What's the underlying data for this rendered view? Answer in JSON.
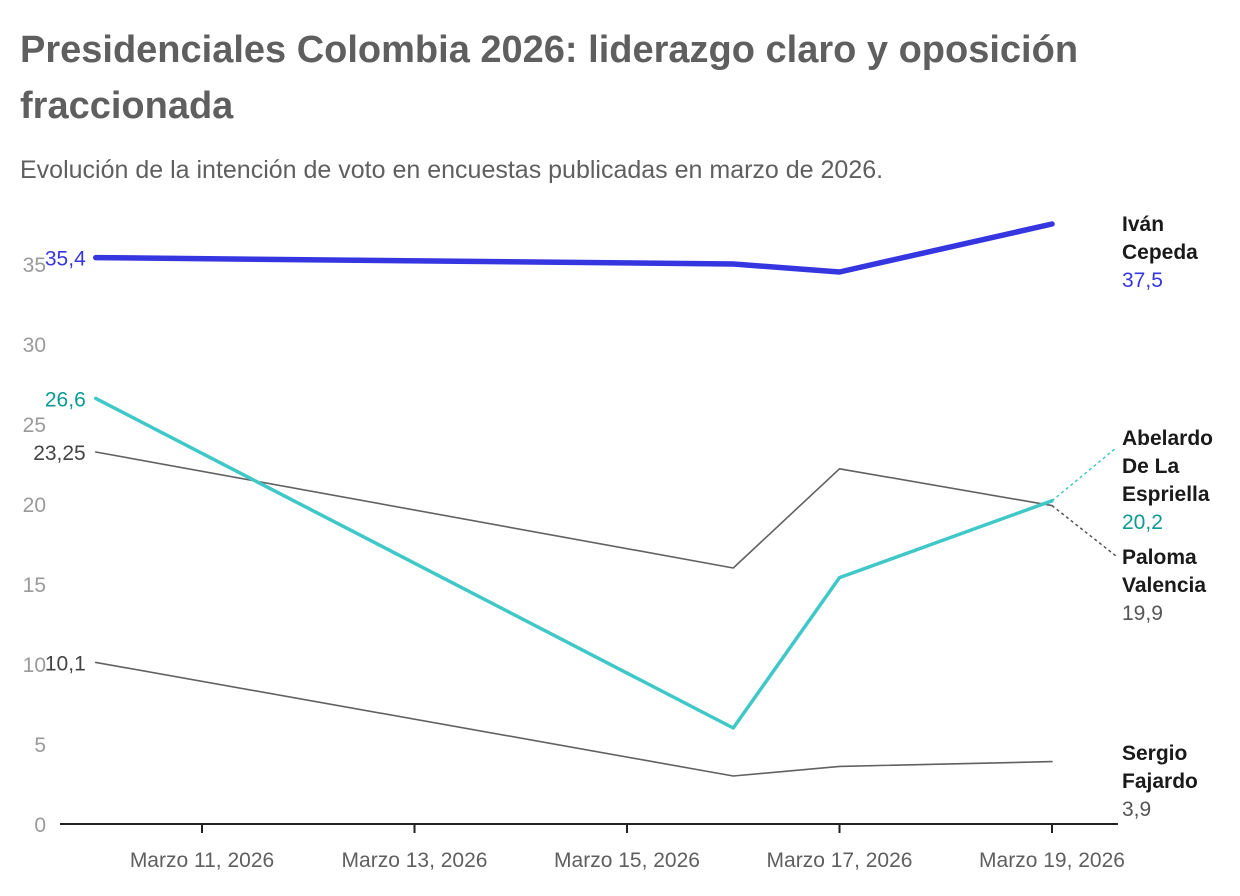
{
  "title": "Presidenciales Colombia 2026: liderazgo claro y oposición fraccionada",
  "subtitle": "Evolución de la intención de voto en encuestas publicadas en marzo de 2026.",
  "chart_data": {
    "type": "line",
    "title": "Presidenciales Colombia 2026: liderazgo claro y oposición fraccionada",
    "subtitle": "Evolución de la intención de voto en encuestas publicadas en marzo de 2026.",
    "xlabel": "",
    "ylabel": "",
    "x": [
      "2026-03-10",
      "2026-03-16",
      "2026-03-17",
      "2026-03-19"
    ],
    "xlim": [
      9.4,
      19.8
    ],
    "ylim": [
      0,
      37.5
    ],
    "x_ticks": [
      {
        "value": 11,
        "label": "Marzo 11, 2026"
      },
      {
        "value": 13,
        "label": "Marzo 13, 2026"
      },
      {
        "value": 15,
        "label": "Marzo 15, 2026"
      },
      {
        "value": 17,
        "label": "Marzo 17, 2026"
      },
      {
        "value": 19,
        "label": "Marzo 19, 2026"
      }
    ],
    "y_ticks": [
      {
        "value": 0,
        "label": "0"
      },
      {
        "value": 5,
        "label": "5"
      },
      {
        "value": 10,
        "label": "10"
      },
      {
        "value": 15,
        "label": "15"
      },
      {
        "value": 20,
        "label": "20"
      },
      {
        "value": 25,
        "label": "25"
      },
      {
        "value": 30,
        "label": "30"
      },
      {
        "value": 35,
        "label": "35"
      }
    ],
    "grid": false,
    "series": [
      {
        "key": "cepeda",
        "name": "Iván Cepeda",
        "name_lines": [
          "Iván",
          "Cepeda"
        ],
        "color": "#3636e0",
        "value_color": "#3636e0",
        "points": [
          [
            10,
            35.4
          ],
          [
            16,
            35.0
          ],
          [
            17,
            34.5
          ],
          [
            19,
            37.5
          ]
        ],
        "start_label": "35,4",
        "start_color": "#3636e0",
        "end_label": "37,5"
      },
      {
        "key": "delaespriella",
        "name": "Abelardo De La Espriella",
        "name_lines": [
          "Abelardo",
          "De La",
          "Espriella"
        ],
        "color": "#40c8c8",
        "value_color": "#0e9a94",
        "points": [
          [
            10,
            26.6
          ],
          [
            16,
            6.0
          ],
          [
            17,
            15.4
          ],
          [
            19,
            20.2
          ]
        ],
        "start_label": "26,6",
        "start_color": "#0e9a94",
        "end_label": "20,2"
      },
      {
        "key": "valencia",
        "name": "Paloma Valencia",
        "name_lines": [
          "Paloma",
          "Valencia"
        ],
        "color": "#616161",
        "value_color": "#555555",
        "points": [
          [
            10,
            23.25
          ],
          [
            16,
            16.0
          ],
          [
            17,
            22.2
          ],
          [
            19,
            19.9
          ]
        ],
        "start_label": "23,25",
        "start_color": "#444444",
        "end_label": "19,9"
      },
      {
        "key": "fajardo",
        "name": "Sergio Fajardo",
        "name_lines": [
          "Sergio",
          "Fajardo"
        ],
        "color": "#616161",
        "value_color": "#555555",
        "points": [
          [
            10,
            10.1
          ],
          [
            16,
            3.0
          ],
          [
            17,
            3.6
          ],
          [
            19,
            3.9
          ]
        ],
        "start_label": "10,1",
        "start_color": "#444444",
        "end_label": "3,9"
      }
    ]
  }
}
